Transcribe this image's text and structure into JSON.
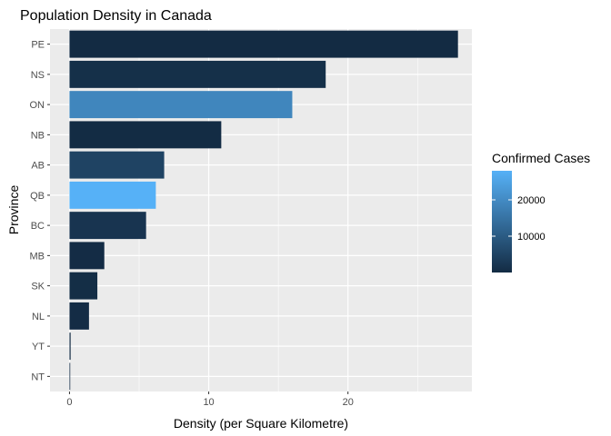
{
  "chart_data": {
    "type": "bar",
    "orientation": "horizontal",
    "title": "Population Density in Canada",
    "xlabel": "Density (per Square Kilometre)",
    "ylabel": "Province",
    "xlim": [
      -1.4,
      28.9
    ],
    "x_ticks": [
      0,
      10,
      20
    ],
    "grid": true,
    "categories": [
      "NT",
      "YT",
      "NL",
      "SK",
      "MB",
      "BC",
      "QB",
      "AB",
      "NB",
      "ON",
      "NS",
      "PE"
    ],
    "values": [
      0.04,
      0.08,
      1.4,
      2.0,
      2.5,
      5.5,
      6.2,
      6.8,
      10.9,
      16.0,
      18.4,
      27.9
    ],
    "confirmed_cases": [
      5,
      11,
      261,
      544,
      282,
      1960,
      28000,
      5000,
      118,
      19000,
      1000,
      27
    ],
    "legend": {
      "title": "Confirmed Cases",
      "position": "right",
      "range": [
        0,
        28000
      ],
      "ticks": [
        10000,
        20000
      ],
      "tick_labels": [
        "10000",
        "20000"
      ],
      "color_low": "#132B43",
      "color_high": "#56B1F7"
    },
    "panel_background": "#EBEBEB",
    "grid_color": "#FFFFFF"
  }
}
